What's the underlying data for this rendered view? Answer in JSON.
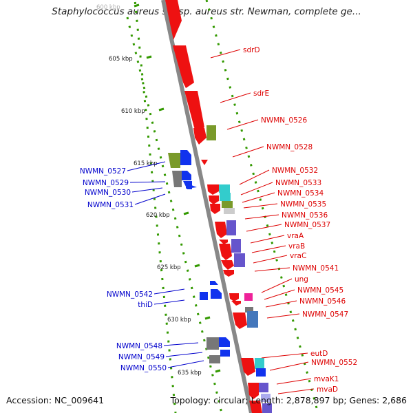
{
  "title": "Staphylococcus aureus subsp. aureus str. Newman, complete ge...",
  "footer": {
    "accession": "Accession: NC_009641",
    "summary": "Topology: circular; Length: 2,878,897 bp; Genes: 2,686"
  },
  "colors": {
    "backbone": "#888888",
    "forward_label": "#dd0000",
    "reverse_label": "#0000cc",
    "tick": "#339900",
    "gene_red": "#ee1111",
    "gene_blue": "#1133ee",
    "gene_olive": "#7a9a2a",
    "gene_cyan": "#33cccc",
    "gene_gray": "#777777",
    "gene_magenta": "#ee2299",
    "gene_purple": "#6655cc",
    "gene_steel": "#4477bb"
  },
  "scale_marks": [
    "600 kbp",
    "605 kbp",
    "610 kbp",
    "615 kbp",
    "620 kbp",
    "625 kbp",
    "630 kbp",
    "635 kbp"
  ],
  "forward_genes": [
    "sdrD",
    "sdrE",
    "NWMN_0526",
    "NWMN_0528",
    "NWMN_0532",
    "NWMN_0533",
    "NWMN_0534",
    "NWMN_0535",
    "NWMN_0536",
    "NWMN_0537",
    "vraA",
    "vraB",
    "vraC",
    "NWMN_0541",
    "ung",
    "NWMN_0545",
    "NWMN_0546",
    "NWMN_0547",
    "eutD",
    "NWMN_0552",
    "mvaK1",
    "mvaD"
  ],
  "reverse_genes": [
    "NWMN_0527",
    "NWMN_0529",
    "NWMN_0530",
    "NWMN_0531",
    "NWMN_0542",
    "thiD",
    "NWMN_0548",
    "NWMN_0549",
    "NWMN_0550"
  ]
}
